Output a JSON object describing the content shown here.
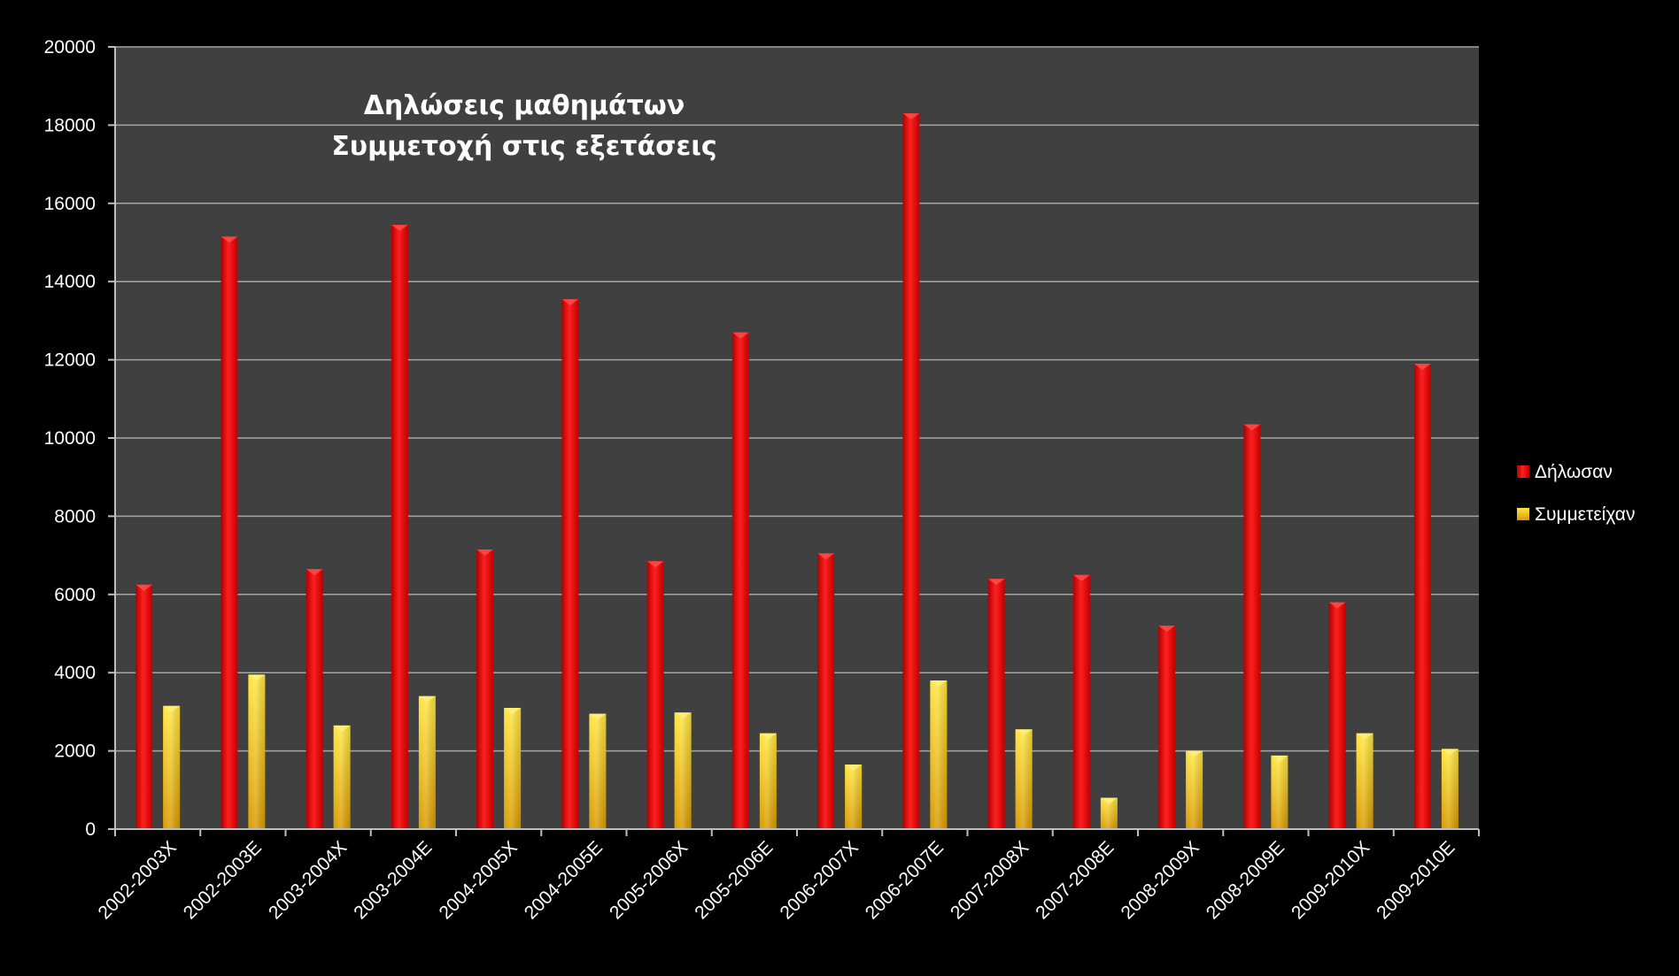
{
  "chart_data": {
    "type": "bar",
    "title_lines": [
      "Δηλώσεις μαθημάτων",
      "Συμμετοχή στις εξετάσεις"
    ],
    "xlabel": "",
    "ylabel": "",
    "ylim": [
      0,
      20000
    ],
    "y_ticks": [
      "0",
      "2000",
      "4000",
      "6000",
      "8000",
      "10000",
      "12000",
      "14000",
      "16000",
      "18000",
      "20000"
    ],
    "grid": true,
    "legend_position": "right",
    "categories": [
      "2002-2003Χ",
      "2002-2003Ε",
      "2003-2004Χ",
      "2003-2004Ε",
      "2004-2005Χ",
      "2004-2005Ε",
      "2005-2006Χ",
      "2005-2006Ε",
      "2006-2007Χ",
      "2006-2007Ε",
      "2007-2008Χ",
      "2007-2008Ε",
      "2008-2009Χ",
      "2008-2009Ε",
      "2009-2010Χ",
      "2009-2010Ε"
    ],
    "series": [
      {
        "name": "Δήλωσαν",
        "color": "#ff0000",
        "values": [
          6250,
          15150,
          6650,
          15450,
          7150,
          13550,
          6850,
          12700,
          7050,
          18300,
          6400,
          6500,
          5200,
          10350,
          5800,
          11900
        ]
      },
      {
        "name": "Συμμετείχαν",
        "color": "#ffd700",
        "values": [
          3150,
          3950,
          2650,
          3400,
          3100,
          2950,
          2980,
          2450,
          1650,
          3800,
          2550,
          800,
          2000,
          1880,
          2450,
          2050
        ]
      }
    ]
  },
  "colors": {
    "background": "#000000",
    "plot_area": "#404040",
    "gridline": "#a6a6a6",
    "text": "#ffffff"
  }
}
